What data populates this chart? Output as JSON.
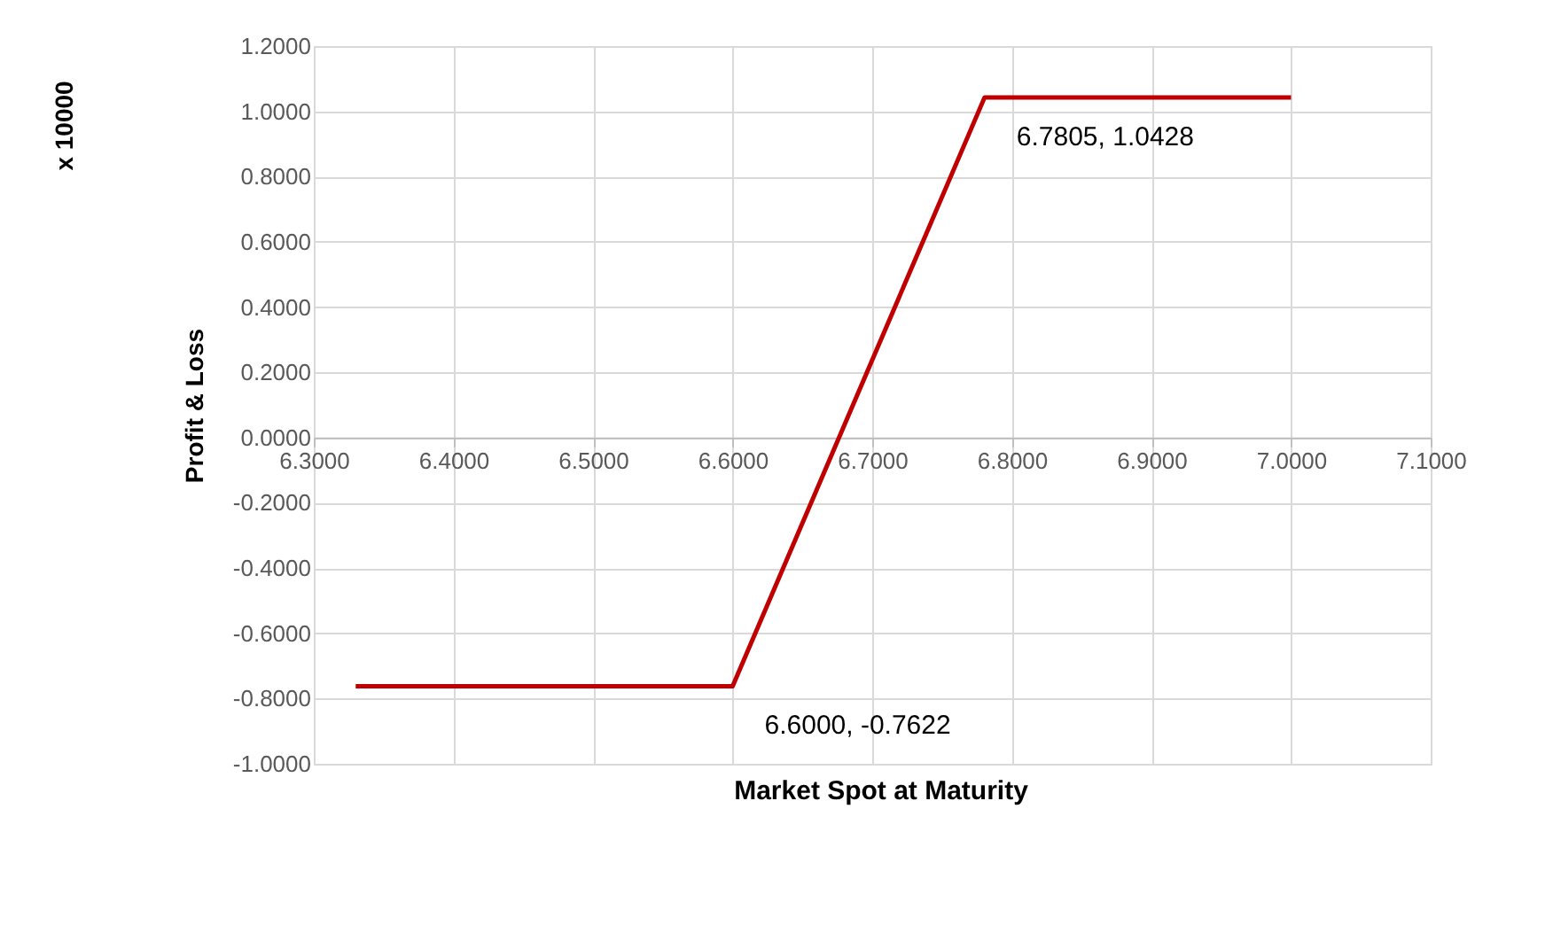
{
  "chart_data": {
    "type": "line",
    "xlabel": "Market Spot at Maturity",
    "ylabel": "Profit & Loss",
    "annotations": [
      "x 10000",
      {
        "text": "6.7805, 1.0428",
        "x": 6.7805,
        "y": 1.0428
      },
      {
        "text": "6.6000, -0.7622",
        "x": 6.6,
        "y": -0.7622
      }
    ],
    "series": [
      {
        "color": "#c00000",
        "x": [
          6.33,
          6.6,
          6.7805,
          7.0
        ],
        "values": [
          -0.7622,
          -0.7622,
          1.0428,
          1.0428
        ]
      }
    ],
    "xlim": [
      6.3,
      7.1
    ],
    "xticks": [
      {
        "value": 6.3,
        "label": "6.3000"
      },
      {
        "value": 6.4,
        "label": "6.4000"
      },
      {
        "value": 6.5,
        "label": "6.5000"
      },
      {
        "value": 6.6,
        "label": "6.6000"
      },
      {
        "value": 6.7,
        "label": "6.7000"
      },
      {
        "value": 6.8,
        "label": "6.8000"
      },
      {
        "value": 6.9,
        "label": "6.9000"
      },
      {
        "value": 7.0,
        "label": "7.0000"
      },
      {
        "value": 7.1,
        "label": "7.1000"
      }
    ],
    "ylim": [
      -1.0,
      1.2
    ],
    "yticks": [
      {
        "value": -1.0,
        "label": "-1.0000"
      },
      {
        "value": -0.8,
        "label": "-0.8000"
      },
      {
        "value": -0.6,
        "label": "-0.6000"
      },
      {
        "value": -0.4,
        "label": "-0.4000"
      },
      {
        "value": -0.2,
        "label": "-0.2000"
      },
      {
        "value": 0.0,
        "label": "0.0000"
      },
      {
        "value": 0.2,
        "label": "0.2000"
      },
      {
        "value": 0.4,
        "label": "0.4000"
      },
      {
        "value": 0.6,
        "label": "0.6000"
      },
      {
        "value": 0.8,
        "label": "0.8000"
      },
      {
        "value": 1.0,
        "label": "1.0000"
      },
      {
        "value": 1.2,
        "label": "1.2000"
      }
    ],
    "grid": true,
    "marker": "none",
    "line_style": "solid"
  }
}
